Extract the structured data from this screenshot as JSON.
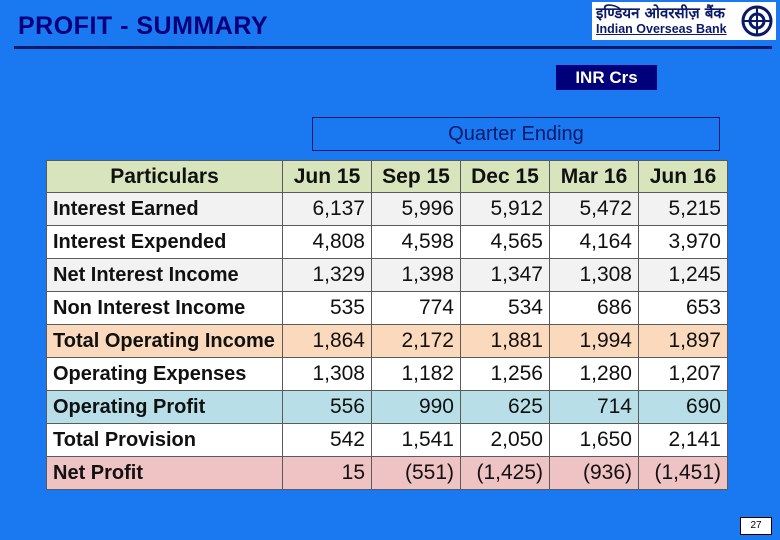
{
  "slide": {
    "title": "PROFIT - SUMMARY",
    "unit_label": "INR Crs",
    "period_header": "Quarter Ending",
    "page_number": "27"
  },
  "logo": {
    "hindi": "इण्डियन ओवरसीज़ बैंक",
    "english": "Indian Overseas Bank",
    "mark_icon": "iob-logo-icon"
  },
  "table": {
    "header": {
      "label": "Particulars",
      "quarters": [
        "Jun 15",
        "Sep 15",
        "Dec 15",
        "Mar 16",
        "Jun 16"
      ]
    },
    "rows": [
      {
        "label": "Interest Earned",
        "values": [
          "6,137",
          "5,996",
          "5,912",
          "5,472",
          "5,215"
        ],
        "bg": "#f2f2f2"
      },
      {
        "label": "Interest Expended",
        "values": [
          "4,808",
          "4,598",
          "4,565",
          "4,164",
          "3,970"
        ],
        "bg": "#ffffff"
      },
      {
        "label": "Net Interest Income",
        "values": [
          "1,329",
          "1,398",
          "1,347",
          "1,308",
          "1,245"
        ],
        "bg": "#f2f2f2"
      },
      {
        "label": "Non Interest Income",
        "values": [
          "535",
          "774",
          "534",
          "686",
          "653"
        ],
        "bg": "#ffffff"
      },
      {
        "label": "Total Operating Income",
        "values": [
          "1,864",
          "2,172",
          "1,881",
          "1,994",
          "1,897"
        ],
        "bg": "#fbd9bd"
      },
      {
        "label": "Operating Expenses",
        "values": [
          "1,308",
          "1,182",
          "1,256",
          "1,280",
          "1,207"
        ],
        "bg": "#ffffff"
      },
      {
        "label": "Operating Profit",
        "values": [
          "556",
          "990",
          "625",
          "714",
          "690"
        ],
        "bg": "#b8dfe8"
      },
      {
        "label": "Total Provision",
        "values": [
          "542",
          "1,541",
          "2,050",
          "1,650",
          "2,141"
        ],
        "bg": "#ffffff"
      },
      {
        "label": "Net Profit",
        "values": [
          "15",
          "(551)",
          "(1,425)",
          "(936)",
          "(1,451)"
        ],
        "bg": "#efc3c3"
      }
    ],
    "header_bg": "#d8e4bc"
  },
  "colors": {
    "background": "#1a78f0",
    "title": "#00007a"
  }
}
